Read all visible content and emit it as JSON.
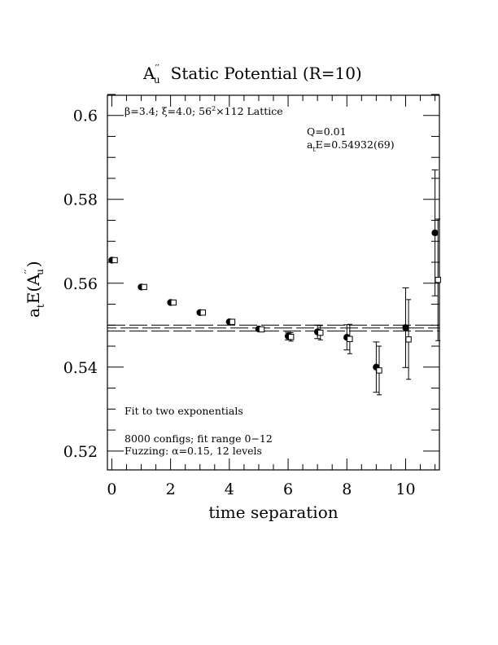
{
  "chart_data": {
    "type": "scatter",
    "title": {
      "main": "A",
      "main_sup": "′′",
      "main_sub": "u",
      "rest": "Static Potential (R=10)"
    },
    "xlabel": "time separation",
    "ylabel": {
      "prefix": "a",
      "prefix_sub": "t",
      "mid": "E(A",
      "mid_sup": "′′",
      "mid_sub": "u",
      "suffix": ")"
    },
    "xlim": [
      -0.15,
      11.15
    ],
    "ylim": [
      0.5155,
      0.6048
    ],
    "x_ticks": [
      0,
      2,
      4,
      6,
      8,
      10
    ],
    "y_ticks": [
      0.52,
      0.54,
      0.56,
      0.58,
      0.6
    ],
    "y_tick_labels": [
      "0.52",
      "0.54",
      "0.56",
      "0.58",
      "0.6"
    ],
    "lattice_label": {
      "beta": "β=3.4; ξ=4.0; 56",
      "sup": "2",
      "rest": "×112 Lattice"
    },
    "fit_q": "Q=0.01",
    "fit_energy": {
      "prefix": "a",
      "prefix_sub": "t",
      "rest": "E=0.54932(69)"
    },
    "notes": [
      "Fit to two exponentials",
      "8000 configs; fit range 0−12",
      "Fuzzing: α=0.15, 12 levels"
    ],
    "fit": {
      "value": 0.54932,
      "error": 0.00069,
      "x_range": [
        -0.15,
        11.15
      ]
    },
    "series": [
      {
        "marker": "filled-circle",
        "points": [
          {
            "x": 0,
            "y": 0.5655,
            "err": 0.0003
          },
          {
            "x": 1,
            "y": 0.5591,
            "err": 0.0004
          },
          {
            "x": 2,
            "y": 0.5554,
            "err": 0.0004
          },
          {
            "x": 3,
            "y": 0.553,
            "err": 0.0004
          },
          {
            "x": 4,
            "y": 0.5508,
            "err": 0.0004
          },
          {
            "x": 5,
            "y": 0.5491,
            "err": 0.0005
          },
          {
            "x": 6,
            "y": 0.5474,
            "err": 0.0009
          },
          {
            "x": 7,
            "y": 0.5484,
            "err": 0.0016
          },
          {
            "x": 8,
            "y": 0.5471,
            "err": 0.003
          },
          {
            "x": 9,
            "y": 0.54,
            "err": 0.006
          },
          {
            "x": 10,
            "y": 0.5494,
            "err": 0.0095
          },
          {
            "x": 11,
            "y": 0.572,
            "err": 0.015
          }
        ]
      },
      {
        "marker": "open-square",
        "points": [
          {
            "x": 0.1,
            "y": 0.5655,
            "err": 0.0003
          },
          {
            "x": 1.1,
            "y": 0.5591,
            "err": 0.0004
          },
          {
            "x": 2.1,
            "y": 0.5554,
            "err": 0.0004
          },
          {
            "x": 3.1,
            "y": 0.553,
            "err": 0.0004
          },
          {
            "x": 4.1,
            "y": 0.5508,
            "err": 0.0004
          },
          {
            "x": 5.1,
            "y": 0.549,
            "err": 0.0005
          },
          {
            "x": 6.1,
            "y": 0.5472,
            "err": 0.001
          },
          {
            "x": 7.1,
            "y": 0.5482,
            "err": 0.0017
          },
          {
            "x": 8.1,
            "y": 0.5467,
            "err": 0.0035
          },
          {
            "x": 9.1,
            "y": 0.5392,
            "err": 0.0058
          },
          {
            "x": 10.1,
            "y": 0.5466,
            "err": 0.0095
          },
          {
            "x": 11.1,
            "y": 0.5608,
            "err": 0.0145
          }
        ]
      }
    ]
  }
}
